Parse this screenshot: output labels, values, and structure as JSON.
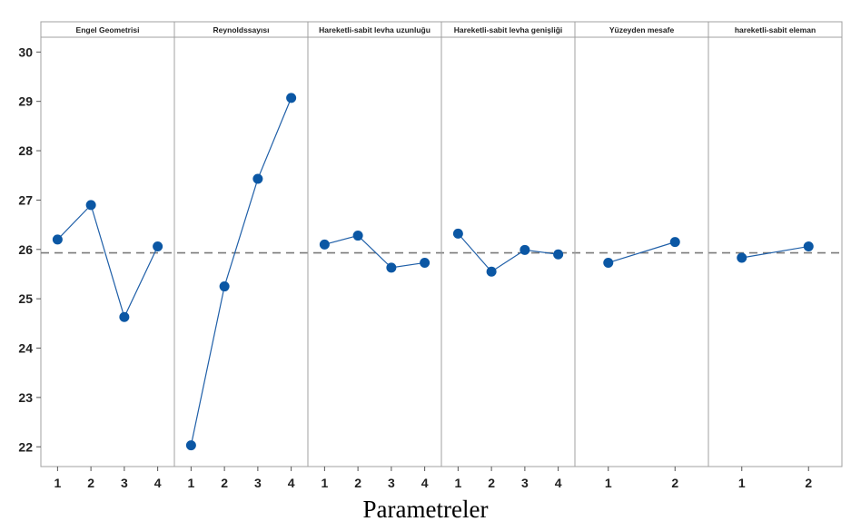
{
  "chart_data": {
    "type": "line",
    "xlabel": "Parametreler",
    "ylabel": "",
    "ylim": [
      21.6,
      30.3
    ],
    "yticks": [
      22,
      23,
      24,
      25,
      26,
      27,
      28,
      29,
      30
    ],
    "reference_line": 25.93,
    "grid": false,
    "colors": {
      "line": "#1f5fa8",
      "marker": "#0b57a4",
      "reference": "#7a7a7a",
      "panel_border": "#a0a0a0"
    },
    "panels": [
      {
        "title": "Engel Geometrisi",
        "x": [
          "1",
          "2",
          "3",
          "4"
        ],
        "values": [
          26.2,
          26.9,
          24.63,
          26.06
        ]
      },
      {
        "title": "Reynoldssayısı",
        "x": [
          "1",
          "2",
          "3",
          "4"
        ],
        "values": [
          22.03,
          25.25,
          27.43,
          29.07
        ]
      },
      {
        "title": "Hareketli-sabit levha uzunluğu",
        "x": [
          "1",
          "2",
          "3",
          "4"
        ],
        "values": [
          26.1,
          26.28,
          25.63,
          25.73
        ]
      },
      {
        "title": "Hareketli-sabit levha genişliği",
        "x": [
          "1",
          "2",
          "3",
          "4"
        ],
        "values": [
          26.32,
          25.55,
          25.99,
          25.9
        ]
      },
      {
        "title": "Yüzeyden mesafe",
        "x": [
          "1",
          "2"
        ],
        "values": [
          25.73,
          26.15
        ]
      },
      {
        "title": "hareketli-sabit eleman",
        "x": [
          "1",
          "2"
        ],
        "values": [
          25.83,
          26.06
        ]
      }
    ]
  }
}
